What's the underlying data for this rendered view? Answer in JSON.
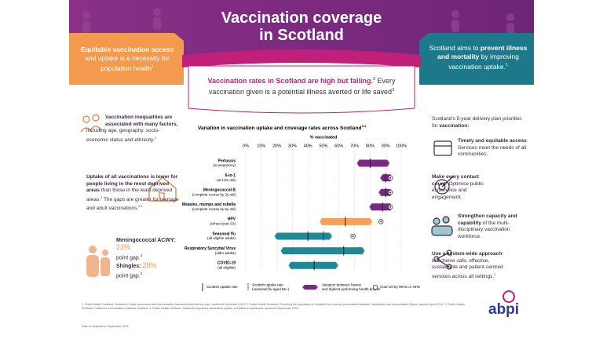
{
  "header": {
    "title_line1": "Vaccination coverage",
    "title_line2": "in Scotland"
  },
  "left_banner": {
    "bold": "Equitable vaccination access",
    "text": "and uptake is a necessity for population health",
    "ref": "1"
  },
  "center_banner": {
    "bold": "Vaccination rates in Scotland are high but falling.",
    "ref1": "2",
    "text": "Every vaccination given is a potential illness averted or life saved",
    "ref2": "3"
  },
  "right_banner": {
    "text1": "Scotland aims to",
    "bold": "prevent illness and mortality",
    "text2": "by improving vaccination uptake.",
    "ref": "1"
  },
  "left_column": {
    "inequalities": {
      "bold": "Vaccination inequalities are associated with many factors,",
      "text": "including age, geography, socio-economic status and ethnicity.",
      "ref": "2"
    },
    "deprivation": {
      "bold": "Uptake of all vaccinations is lower for people living in the most deprived areas",
      "text": "than those in the least deprived areas.",
      "ref1": "2",
      "text2": "The gaps are greater for teenage and adult vaccinations.",
      "ref2": "2,3"
    },
    "gaps": [
      {
        "label": "Meningococcal ACWY:",
        "value": "22%",
        "unit": "point gap.",
        "ref": "3"
      },
      {
        "label": "Shingles:",
        "value": "28%",
        "unit": "point gap.",
        "ref": "3"
      }
    ]
  },
  "right_column": {
    "intro": "Scotland's 5-year delivery plan priorities for",
    "intro_bold": "vaccination:",
    "priorities": [
      {
        "bold": "Timely and equitable access",
        "text": ": Services meet the needs of all communities."
      },
      {
        "bold": "Make every contact count",
        "text": ": Optimise public experience and engagement."
      },
      {
        "bold": "Strengthen capacity and capability",
        "text": "of the multi-disciplinary vaccination workforce."
      },
      {
        "bold": "Use a system-wide approach",
        "text": ": to achieve safe, effective, sustainable and patient-centred services across all settings.",
        "ref": "1"
      }
    ]
  },
  "footer": {
    "references": "1. Public Health Scotland. Scotland's 5 year vaccination and immunisation framework and delivery plan, published November 2023. 2. Public Health Scotland. Protecting the population of Scotland from vaccine preventable diseases: Vaccination and Immunisation Report, annual report 2024. 3. Public Health Scotland. Childhood immunisation statistics Scotland. 4. Public Health Scotland. Seasonal respiratory vaccination uptake, surveillance dashboard, accessed September 2025.",
    "date": "Date of preparation: September 2025.",
    "logo": "abpi"
  },
  "chart_data": {
    "type": "range",
    "title": "Variation in vaccination uptake and coverage rates across Scotland",
    "title_ref": "3,4",
    "x_label": "% vaccinated",
    "categories": [
      "Pertussis",
      "6-in-1",
      "Meningococcal B",
      "Measles, mumps and rubella",
      "HPV",
      "Seasonal flu",
      "Respiratory Syncytial Virus",
      "COVID-19"
    ],
    "category_notes": [
      "(in pregnancy)",
      "(at 12m old)",
      "(complete course by 2y old)",
      "(complete course by 5y old)",
      "(school year S3)",
      "(all eligible adults)",
      "(older adults)",
      "(all eligible)"
    ],
    "xlim": [
      0,
      100
    ],
    "xticks": [
      {
        "value": 0,
        "label": "0%"
      },
      {
        "value": 10,
        "label": "10%"
      },
      {
        "value": 20,
        "label": "20%"
      },
      {
        "value": 30,
        "label": "30%"
      },
      {
        "value": 40,
        "label": "40%"
      },
      {
        "value": 50,
        "label": "50%"
      },
      {
        "value": 60,
        "label": "60%"
      },
      {
        "value": 70,
        "label": "70%"
      },
      {
        "value": 80,
        "label": "80%"
      },
      {
        "value": 90,
        "label": "90%"
      },
      {
        "value": 100,
        "label": "100%"
      }
    ],
    "grid": true,
    "series": [
      {
        "name": "Variation between lowest and highest performing health boards",
        "colors": [
          "#7a2a84",
          "#7a2a84",
          "#7a2a84",
          "#7a2a84",
          "#f5a15c",
          "#1f8a95",
          "#1f8a95",
          "#1f8a95"
        ],
        "low": [
          73,
          88,
          87,
          81,
          49,
          20,
          24,
          29
        ],
        "high": [
          91,
          93,
          93,
          93,
          80,
          54,
          75,
          58
        ]
      },
      {
        "name": "Scottish uptake rate",
        "color": "#2b1a33",
        "values": [
          80,
          90,
          90,
          88,
          64,
          40,
          63,
          44
        ]
      },
      {
        "name": "Scottish uptake rate (seasonal flu aged 65+)",
        "color": "#2b1a33",
        "values": [
          null,
          null,
          null,
          null,
          null,
          50,
          null,
          null
        ]
      },
      {
        "name": "Goal set by WHO or NHS",
        "color": "#2b1a33",
        "values": [
          null,
          93,
          93,
          93,
          87,
          69,
          null,
          null
        ]
      }
    ]
  }
}
